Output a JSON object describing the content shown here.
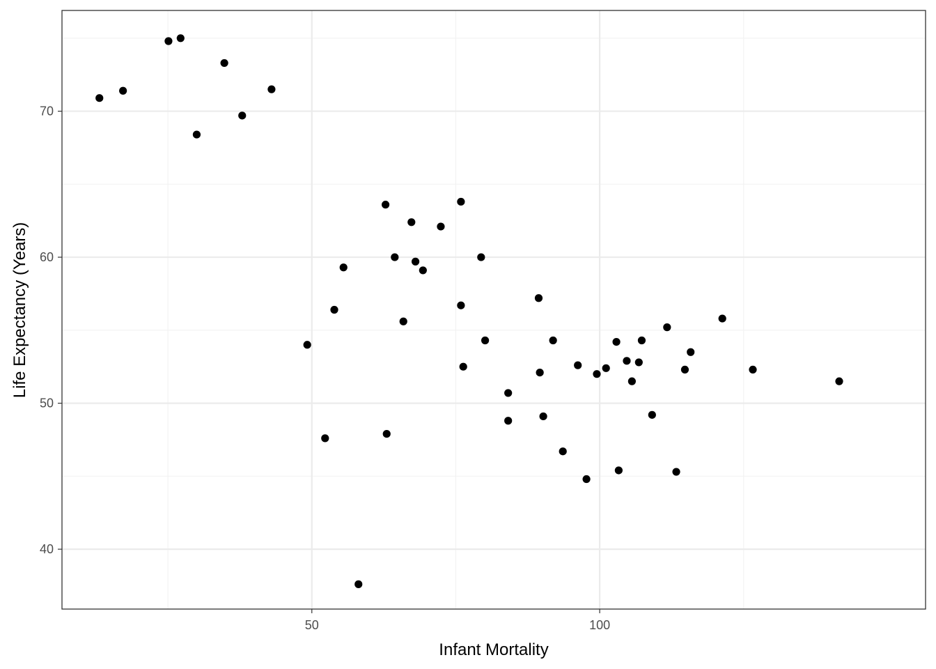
{
  "chart_data": {
    "type": "scatter",
    "title": "",
    "xlabel": "Infant Mortality",
    "ylabel": "Life Expectancy (Years)",
    "xlim": [
      6.6,
      156.6
    ],
    "ylim": [
      35.9,
      76.9
    ],
    "x_ticks": [
      50,
      100
    ],
    "x_minor_ticks": [
      25,
      75,
      125
    ],
    "y_ticks": [
      40,
      50,
      60,
      70
    ],
    "y_minor_ticks": [
      45,
      55,
      65,
      75
    ],
    "x_tick_labels": [
      "50",
      "100"
    ],
    "y_tick_labels": [
      "40",
      "50",
      "60",
      "70"
    ],
    "grid": true,
    "legend": "none",
    "colors": {
      "point": "#000000",
      "major_grid": "#ebebeb",
      "minor_grid": "#f2f2f2",
      "panel_border": "#333333"
    },
    "points": [
      {
        "x": 13.1,
        "y": 70.9
      },
      {
        "x": 17.2,
        "y": 71.4
      },
      {
        "x": 25.1,
        "y": 74.8
      },
      {
        "x": 27.2,
        "y": 75.0
      },
      {
        "x": 30.0,
        "y": 68.4
      },
      {
        "x": 34.8,
        "y": 73.3
      },
      {
        "x": 37.9,
        "y": 69.7
      },
      {
        "x": 43.0,
        "y": 71.5
      },
      {
        "x": 49.2,
        "y": 54.0
      },
      {
        "x": 52.3,
        "y": 47.6
      },
      {
        "x": 53.9,
        "y": 56.4
      },
      {
        "x": 55.5,
        "y": 59.3
      },
      {
        "x": 58.1,
        "y": 37.6
      },
      {
        "x": 62.8,
        "y": 63.6
      },
      {
        "x": 63.0,
        "y": 47.9
      },
      {
        "x": 64.4,
        "y": 60.0
      },
      {
        "x": 65.9,
        "y": 55.6
      },
      {
        "x": 67.3,
        "y": 62.4
      },
      {
        "x": 68.0,
        "y": 59.7
      },
      {
        "x": 69.3,
        "y": 59.1
      },
      {
        "x": 72.4,
        "y": 62.1
      },
      {
        "x": 75.9,
        "y": 63.8
      },
      {
        "x": 75.9,
        "y": 56.7
      },
      {
        "x": 76.3,
        "y": 52.5
      },
      {
        "x": 79.4,
        "y": 60.0
      },
      {
        "x": 80.1,
        "y": 54.3
      },
      {
        "x": 84.1,
        "y": 50.7
      },
      {
        "x": 84.1,
        "y": 48.8
      },
      {
        "x": 89.4,
        "y": 57.2
      },
      {
        "x": 89.6,
        "y": 52.1
      },
      {
        "x": 90.2,
        "y": 49.1
      },
      {
        "x": 91.9,
        "y": 54.3
      },
      {
        "x": 93.6,
        "y": 46.7
      },
      {
        "x": 96.2,
        "y": 52.6
      },
      {
        "x": 97.7,
        "y": 44.8
      },
      {
        "x": 99.5,
        "y": 52.0
      },
      {
        "x": 101.1,
        "y": 52.4
      },
      {
        "x": 102.9,
        "y": 54.2
      },
      {
        "x": 103.3,
        "y": 45.4
      },
      {
        "x": 104.7,
        "y": 52.9
      },
      {
        "x": 105.6,
        "y": 51.5
      },
      {
        "x": 106.8,
        "y": 52.8
      },
      {
        "x": 107.3,
        "y": 54.3
      },
      {
        "x": 109.1,
        "y": 49.2
      },
      {
        "x": 111.7,
        "y": 55.2
      },
      {
        "x": 113.3,
        "y": 45.3
      },
      {
        "x": 114.8,
        "y": 52.3
      },
      {
        "x": 115.8,
        "y": 53.5
      },
      {
        "x": 121.3,
        "y": 55.8
      },
      {
        "x": 126.6,
        "y": 52.3
      },
      {
        "x": 141.6,
        "y": 51.5
      }
    ]
  }
}
